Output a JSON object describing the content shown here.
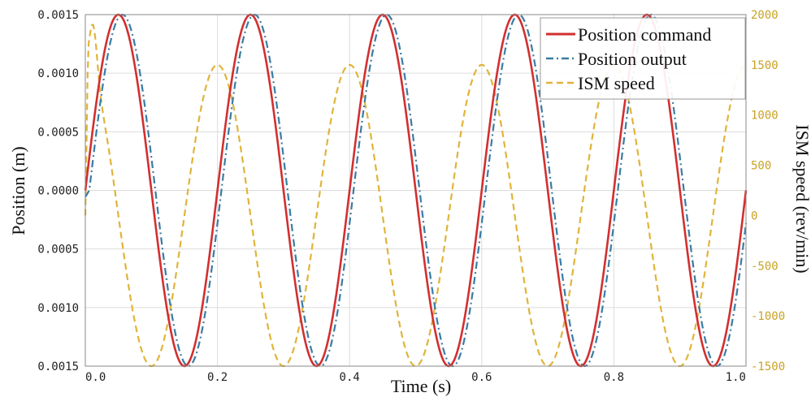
{
  "chart_data": {
    "type": "line",
    "title": "",
    "xlabel": "Time (s)",
    "ylabel": "Position (m)",
    "y2label": "ISM speed (rev/min)",
    "xlim": [
      0,
      1.0
    ],
    "ylim": [
      -0.0015,
      0.0015
    ],
    "y2lim": [
      -1500,
      2000
    ],
    "x_ticks": [
      "0.0",
      "0.2",
      "0.4",
      "0.6",
      "0.8",
      "1.0"
    ],
    "y_ticks": [
      "0.0015",
      "0.0010",
      "0.0005",
      "0.0000",
      "0.0005",
      "0.0010",
      "0.0015"
    ],
    "y2_ticks": [
      "2000",
      "1500",
      "1000",
      "500",
      "0",
      "-500",
      "-1000",
      "-1500"
    ],
    "grid": true,
    "legend_position": "top-right",
    "series": [
      {
        "name": "Position command",
        "axis": "left",
        "color": "#d32f2f",
        "style": "solid",
        "amplitude": 0.0015,
        "period_s": 0.2,
        "phase_delay_s": 0.0,
        "x": [
          0.0,
          0.05,
          0.15,
          0.25,
          0.35,
          0.45,
          0.55,
          0.65,
          0.75,
          0.85,
          0.95,
          1.0
        ],
        "y": [
          0.0,
          0.0015,
          -0.0015,
          0.0015,
          -0.0015,
          0.0015,
          -0.0015,
          0.0015,
          -0.0015,
          0.0015,
          -0.0015,
          0.0
        ]
      },
      {
        "name": "Position output",
        "axis": "left",
        "color": "#3a7ca5",
        "style": "dash-dot",
        "amplitude": 0.0015,
        "period_s": 0.2,
        "phase_delay_s": 0.006,
        "x": [
          0.0,
          0.056,
          0.156,
          0.256,
          0.356,
          0.456,
          0.556,
          0.656,
          0.756,
          0.856,
          0.956
        ],
        "y": [
          0.0,
          0.0015,
          -0.0015,
          0.0015,
          -0.0015,
          0.0015,
          -0.0015,
          0.0015,
          -0.0015,
          0.0015,
          -0.0015
        ]
      },
      {
        "name": "ISM speed",
        "axis": "right",
        "color": "#e0b43a",
        "style": "dashed",
        "amplitude": 1500,
        "period_s": 0.2,
        "initial_peak": 2000,
        "x": [
          0.0,
          0.01,
          0.1,
          0.2,
          0.3,
          0.4,
          0.5,
          0.6,
          0.7,
          0.8,
          0.9,
          1.0
        ],
        "y": [
          0,
          2000,
          -1500,
          1500,
          -1500,
          1500,
          -1500,
          1500,
          -1500,
          1500,
          -1500,
          1500
        ]
      }
    ]
  }
}
